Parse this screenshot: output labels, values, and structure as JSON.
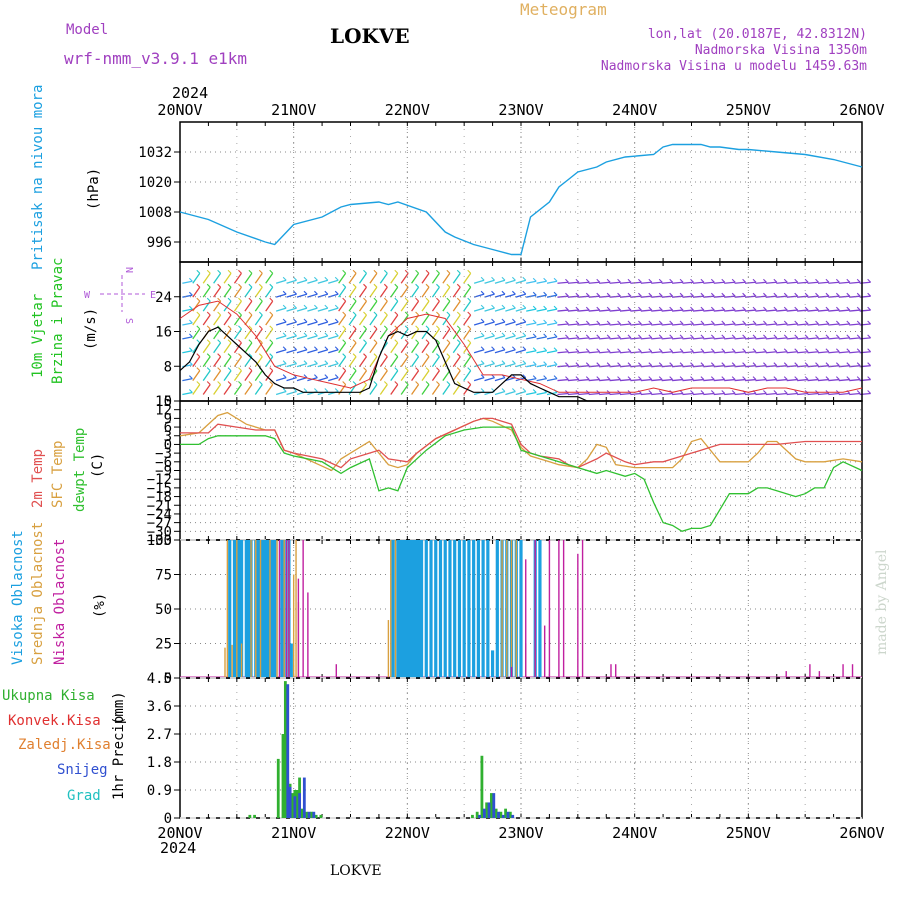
{
  "header": {
    "model_label": "Model",
    "model_name": "wrf-nmm_v3.9.1 e1km",
    "station": "LOKVE",
    "meteogram": "Meteogram",
    "lonlat": "lon,lat (20.0187E, 42.8312N)",
    "altitude": "Nadmorska Visina 1350m",
    "model_altitude": "Nadmorska Visina u modelu 1459.63m",
    "year_top": "2024",
    "year_bottom": "2024",
    "footer_station": "LOKVE",
    "watermark": "made by Angel"
  },
  "colors": {
    "pressure": "#1ca0e0",
    "wind_label": "#22c322",
    "wind_icon": "#b05ad8",
    "temp2m": "#e05050",
    "sfc_temp": "#d8a040",
    "dewpt": "#30c030",
    "cloud_high": "#1ca0e0",
    "cloud_mid": "#d8a040",
    "cloud_low": "#c020a0",
    "precip_total": "#30b030",
    "precip_conv": "#e03030",
    "precip_frozen": "#e08030",
    "precip_snow": "#3050d0",
    "precip_grad": "#20c0c0",
    "title_purple": "#a040c0",
    "meteogram_orange": "#e0b060"
  },
  "x_axis": {
    "labels": [
      "20NOV",
      "21NOV",
      "22NOV",
      "23NOV",
      "24NOV",
      "25NOV",
      "26NOV"
    ]
  },
  "chart_data": [
    {
      "type": "line",
      "id": "pressure",
      "ylabel_left": "Pritisak na nivou mora",
      "unit": "(hPa)",
      "yticks": [
        996,
        1008,
        1020,
        1032
      ],
      "ylim": [
        988,
        1044
      ],
      "xlim": [
        0,
        144
      ],
      "series": [
        {
          "x": [
            0,
            6,
            12,
            18,
            20,
            24,
            30,
            34,
            36,
            42,
            44,
            46,
            52,
            56,
            58,
            62,
            66,
            70,
            72,
            74,
            78,
            80,
            82,
            84,
            88,
            90,
            94,
            100,
            102,
            104,
            106,
            108,
            110,
            112,
            114,
            118,
            120,
            126,
            132,
            138,
            144
          ],
          "values": [
            1008,
            1005,
            1000,
            996,
            995,
            1003,
            1006,
            1010,
            1011,
            1012,
            1011,
            1012,
            1008,
            1000,
            998,
            995,
            993,
            991,
            991,
            1006,
            1012,
            1018,
            1021,
            1024,
            1026,
            1028,
            1030,
            1031,
            1034,
            1035,
            1035,
            1035,
            1035,
            1034,
            1034,
            1033,
            1033,
            1032,
            1031,
            1029,
            1026
          ]
        }
      ]
    },
    {
      "type": "line",
      "id": "wind",
      "ylabel_left_1": "10m Vjetar",
      "ylabel_left_2": "Brzina i Pravac",
      "unit": "(m/s)",
      "compass_n": "N",
      "compass_s": "S",
      "compass_w": "W",
      "compass_e": "E",
      "yticks": [
        0,
        8,
        16,
        24
      ],
      "ylim": [
        0,
        32
      ],
      "xlim": [
        0,
        144
      ],
      "series": [
        {
          "name": "speed",
          "x": [
            0,
            2,
            4,
            6,
            8,
            10,
            12,
            14,
            16,
            18,
            20,
            22,
            24,
            26,
            28,
            30,
            32,
            34,
            36,
            38,
            40,
            42,
            44,
            46,
            48,
            50,
            52,
            54,
            56,
            58,
            60,
            62,
            64,
            66,
            68,
            70,
            72,
            74,
            76,
            78,
            80,
            82,
            84,
            86,
            88,
            90,
            92,
            94,
            96,
            98,
            100,
            102,
            104,
            106,
            108,
            110,
            112,
            114,
            116,
            118,
            120,
            122,
            124,
            126,
            128,
            130,
            132,
            134,
            136,
            138,
            140,
            142,
            144
          ],
          "values": [
            7,
            9,
            13,
            16,
            17,
            15,
            13,
            11,
            9,
            6,
            4,
            3,
            3,
            2,
            2,
            2,
            2,
            2,
            2,
            2,
            3,
            10,
            15,
            16,
            15,
            16,
            16,
            14,
            9,
            4,
            3,
            2,
            2,
            2,
            4,
            6,
            6,
            4,
            3,
            2,
            1,
            1,
            1,
            0,
            0,
            0,
            0,
            0,
            0,
            0,
            0,
            0,
            0,
            0,
            0,
            0,
            0,
            0,
            0,
            0,
            0,
            0,
            0,
            0,
            0,
            0,
            0,
            0,
            0,
            0,
            0,
            0,
            0
          ]
        },
        {
          "name": "gust",
          "x": [
            0,
            4,
            8,
            12,
            16,
            20,
            24,
            28,
            32,
            36,
            40,
            44,
            48,
            52,
            56,
            60,
            64,
            68,
            72,
            76,
            80,
            84,
            88,
            92,
            96,
            100,
            104,
            108,
            112,
            116,
            120,
            124,
            128,
            132,
            136,
            140,
            144
          ],
          "values": [
            19,
            22,
            23,
            20,
            15,
            8,
            6,
            5,
            4,
            3,
            5,
            15,
            19,
            20,
            19,
            13,
            6,
            6,
            5,
            4,
            2,
            2,
            2,
            2,
            2,
            3,
            2,
            3,
            3,
            3,
            2,
            3,
            3,
            2,
            2,
            2,
            3
          ]
        }
      ]
    },
    {
      "type": "line",
      "id": "temperature",
      "ylabel_left_1": "2m Temp",
      "ylabel_left_2": "SFC Temp",
      "ylabel_left_3": "dewpt Temp",
      "unit": "(C)",
      "yticks": [
        "15",
        "12",
        "9",
        "6",
        "3",
        "0",
        "-3",
        "-6",
        "-9",
        "-12",
        "-15",
        "-18",
        "-21",
        "-24",
        "-27",
        "-30",
        "-33"
      ],
      "ylim": [
        -33,
        15
      ],
      "xlim": [
        0,
        144
      ],
      "series": [
        {
          "name": "2m",
          "x": [
            0,
            6,
            8,
            12,
            16,
            20,
            22,
            24,
            30,
            34,
            36,
            42,
            44,
            48,
            50,
            54,
            58,
            62,
            64,
            66,
            70,
            72,
            74,
            76,
            80,
            82,
            84,
            88,
            90,
            94,
            96,
            100,
            102,
            104,
            106,
            108,
            110,
            112,
            114,
            120,
            126,
            132,
            138,
            144
          ],
          "values": [
            4,
            4,
            7,
            6,
            5,
            5,
            -2,
            -3,
            -5,
            -8,
            -5,
            -2,
            -5,
            -6,
            -3,
            2,
            5,
            8,
            9,
            9,
            7,
            0,
            -3,
            -4,
            -5,
            -7,
            -8,
            -5,
            -3,
            -6,
            -7,
            -6,
            -6,
            -5,
            -4,
            -3,
            -2,
            -1,
            0,
            0,
            0,
            1,
            1,
            1
          ]
        },
        {
          "name": "SFC",
          "x": [
            0,
            4,
            8,
            10,
            14,
            18,
            20,
            22,
            24,
            28,
            32,
            34,
            36,
            40,
            44,
            46,
            48,
            50,
            54,
            58,
            62,
            64,
            66,
            70,
            72,
            74,
            78,
            80,
            84,
            86,
            88,
            90,
            92,
            96,
            100,
            104,
            106,
            108,
            110,
            114,
            120,
            122,
            124,
            126,
            130,
            132,
            136,
            140,
            144
          ],
          "values": [
            3,
            4,
            10,
            11,
            7,
            5,
            5,
            -2,
            -3,
            -6,
            -9,
            -5,
            -3,
            1,
            -7,
            -8,
            -7,
            -3,
            2,
            5,
            8,
            9,
            8,
            5,
            -1,
            -4,
            -6,
            -7,
            -8,
            -5,
            0,
            -1,
            -7,
            -8,
            -8,
            -8,
            -5,
            1,
            2,
            -6,
            -6,
            -3,
            1,
            1,
            -5,
            -6,
            -6,
            -5,
            -6
          ]
        },
        {
          "name": "dewpt",
          "x": [
            0,
            4,
            6,
            8,
            12,
            18,
            20,
            22,
            24,
            30,
            34,
            36,
            40,
            42,
            44,
            46,
            48,
            52,
            56,
            60,
            64,
            66,
            70,
            72,
            76,
            80,
            84,
            88,
            90,
            94,
            96,
            98,
            100,
            102,
            104,
            106,
            108,
            110,
            112,
            116,
            120,
            122,
            124,
            126,
            130,
            132,
            134,
            136,
            138,
            140,
            144
          ],
          "values": [
            0,
            0,
            2,
            3,
            3,
            3,
            2,
            -3,
            -4,
            -6,
            -10,
            -8,
            -5,
            -16,
            -15,
            -16,
            -8,
            -2,
            3,
            5,
            6,
            6,
            6,
            -2,
            -4,
            -6,
            -8,
            -10,
            -9,
            -11,
            -10,
            -12,
            -20,
            -27,
            -28,
            -30,
            -29,
            -29,
            -28,
            -17,
            -17,
            -15,
            -15,
            -16,
            -18,
            -17,
            -15,
            -15,
            -8,
            -6,
            -9
          ]
        }
      ]
    },
    {
      "type": "bar",
      "id": "clouds",
      "ylabel_left_1": "Visoka Oblacnost",
      "ylabel_left_2": "Srednja Oblacnost",
      "ylabel_left_3": "Niska Oblacnost",
      "unit": "(%)",
      "yticks": [
        "0",
        "25",
        "50",
        "75",
        "100"
      ],
      "ylim": [
        0,
        100
      ],
      "xlim": [
        0,
        144
      ],
      "series": [
        {
          "name": "high",
          "x": [
            10.5,
            11.5,
            12,
            12.5,
            13,
            14,
            14.5,
            15,
            16,
            16.5,
            17,
            17.5,
            18,
            18.5,
            19,
            19.5,
            20,
            21.5,
            22,
            23,
            23.5,
            45,
            46,
            46.5,
            47,
            47.5,
            48,
            48.5,
            49,
            49.5,
            50,
            50.5,
            51,
            52,
            53,
            54,
            55,
            56,
            57,
            58,
            59,
            60,
            61,
            62,
            63,
            64,
            65,
            66,
            67,
            68,
            69,
            70,
            71,
            72,
            75,
            76
          ],
          "values": [
            100,
            100,
            100,
            100,
            100,
            100,
            100,
            100,
            100,
            100,
            100,
            100,
            100,
            100,
            100,
            100,
            100,
            100,
            100,
            100,
            25,
            100,
            100,
            100,
            100,
            100,
            100,
            100,
            100,
            100,
            100,
            100,
            100,
            100,
            100,
            100,
            100,
            100,
            100,
            100,
            100,
            100,
            100,
            100,
            100,
            100,
            100,
            20,
            100,
            100,
            100,
            100,
            100,
            100,
            100,
            100
          ]
        },
        {
          "name": "mid",
          "x": [
            9.5,
            10,
            11,
            12,
            13,
            15,
            16,
            17,
            19,
            20.5,
            22,
            23,
            24,
            24.5,
            25,
            26,
            44,
            44.5,
            45.5,
            68,
            69,
            70,
            71,
            72,
            73,
            74,
            75,
            77,
            78,
            79
          ],
          "values": [
            22,
            100,
            24,
            100,
            25,
            100,
            100,
            100,
            100,
            100,
            100,
            85,
            75,
            100,
            55,
            0,
            42,
            100,
            100,
            100,
            100,
            100,
            100,
            0,
            25,
            0,
            20,
            0,
            0,
            0
          ]
        },
        {
          "name": "low",
          "x": [
            21,
            22.5,
            23,
            25,
            26,
            27,
            33,
            60,
            70,
            73,
            75,
            77,
            78,
            80,
            81,
            84,
            85,
            91,
            92,
            128,
            133,
            135,
            140,
            142
          ],
          "values": [
            100,
            100,
            100,
            72,
            100,
            62,
            10,
            0,
            8,
            86,
            100,
            38,
            100,
            100,
            100,
            90,
            100,
            10,
            10,
            5,
            10,
            5,
            10,
            10
          ]
        }
      ]
    },
    {
      "type": "bar",
      "id": "precip",
      "ylabel_left": "1hr Precip",
      "unit": "(mm)",
      "legend": [
        "Ukupna Kisa",
        "Konvek.Kisa",
        "Zaledj.Kisa",
        "Snijeg",
        "Grad"
      ],
      "yticks": [
        "0",
        "0.9",
        "1.8",
        "2.7",
        "3.6",
        "4.5"
      ],
      "ylim": [
        0,
        4.5
      ],
      "xlim": [
        0,
        144
      ],
      "series": [
        {
          "name": "total",
          "x": [
            15,
            16,
            21,
            22,
            22.5,
            23,
            23.5,
            24,
            24.5,
            25,
            25.5,
            26,
            27,
            28,
            29,
            30,
            62,
            63,
            64,
            65,
            66,
            67,
            68,
            69,
            70
          ],
          "values": [
            0.1,
            0.1,
            1.9,
            2.7,
            4.4,
            1.2,
            1.1,
            0.8,
            0.9,
            0.9,
            1.3,
            0.3,
            0.2,
            0.2,
            0.1,
            0.1,
            0.1,
            0.2,
            2.0,
            0.5,
            0.8,
            0.3,
            0.2,
            0.3,
            0.2
          ]
        },
        {
          "name": "snow",
          "x": [
            22.5,
            23,
            24,
            25,
            26,
            27,
            28,
            63,
            64,
            65,
            66,
            67,
            68,
            69,
            70
          ],
          "values": [
            4.3,
            1.0,
            0.7,
            0.8,
            1.3,
            0.2,
            0.2,
            0.1,
            0.3,
            0.5,
            0.8,
            0.2,
            0.1,
            0.2,
            0.1
          ]
        }
      ]
    }
  ]
}
